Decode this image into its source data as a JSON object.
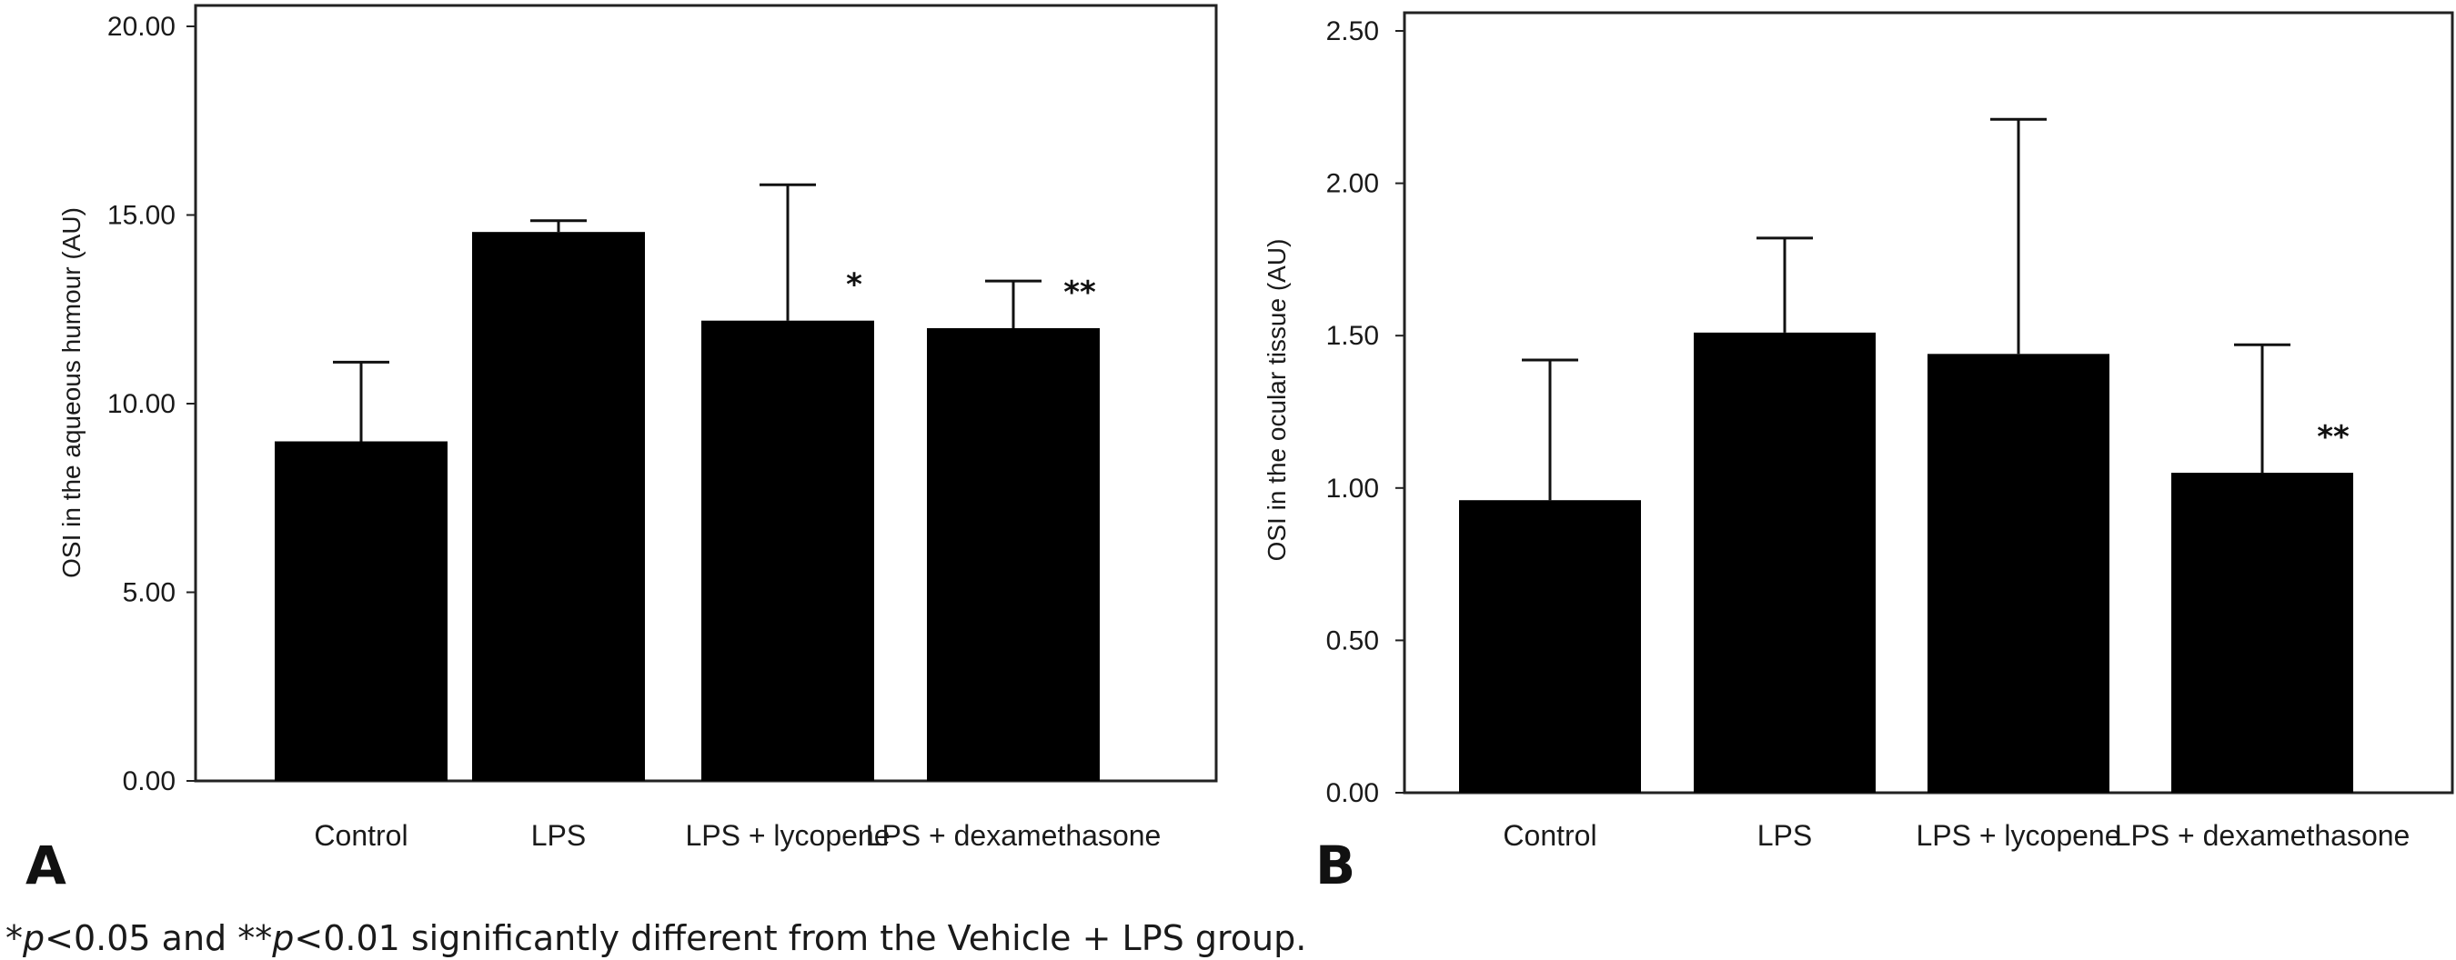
{
  "chart_data": [
    {
      "type": "bar",
      "panel_label": "A",
      "categories": [
        "Control",
        "LPS",
        "LPS + lycopene",
        "LPS + dexamethasone"
      ],
      "values": [
        9.0,
        14.55,
        12.2,
        12.0
      ],
      "error_upper": [
        11.1,
        14.85,
        15.8,
        13.25
      ],
      "significance": [
        "",
        "",
        "*",
        "**"
      ],
      "ylabel": "OSI in the aqueous humour (AU)",
      "xlabel": "",
      "ylim": [
        0,
        20
      ],
      "yticks": [
        "0.00",
        "5.00",
        "10.00",
        "15.00",
        "20.00"
      ],
      "bar_color": "#000000"
    },
    {
      "type": "bar",
      "panel_label": "B",
      "categories": [
        "Control",
        "LPS",
        "LPS + lycopene",
        "LPS + dexamethasone"
      ],
      "values": [
        0.96,
        1.51,
        1.44,
        1.05
      ],
      "error_upper": [
        1.42,
        1.82,
        2.21,
        1.47
      ],
      "significance": [
        "",
        "",
        "",
        "**"
      ],
      "ylabel": "OSI in the ocular tissue (AU)",
      "xlabel": "",
      "ylim": [
        0,
        2.6
      ],
      "yticks": [
        "0.00",
        "0.50",
        "1.00",
        "1.50",
        "2.00",
        "2.50"
      ],
      "bar_color": "#000000"
    }
  ],
  "footnote": {
    "p1_symbol": "*",
    "p1_var": "p",
    "p1_rest": "<0.05 and ",
    "p2_symbol": "**",
    "p2_var": "p",
    "p2_rest": "<0.01 significantly different from the Vehicle + LPS group."
  }
}
